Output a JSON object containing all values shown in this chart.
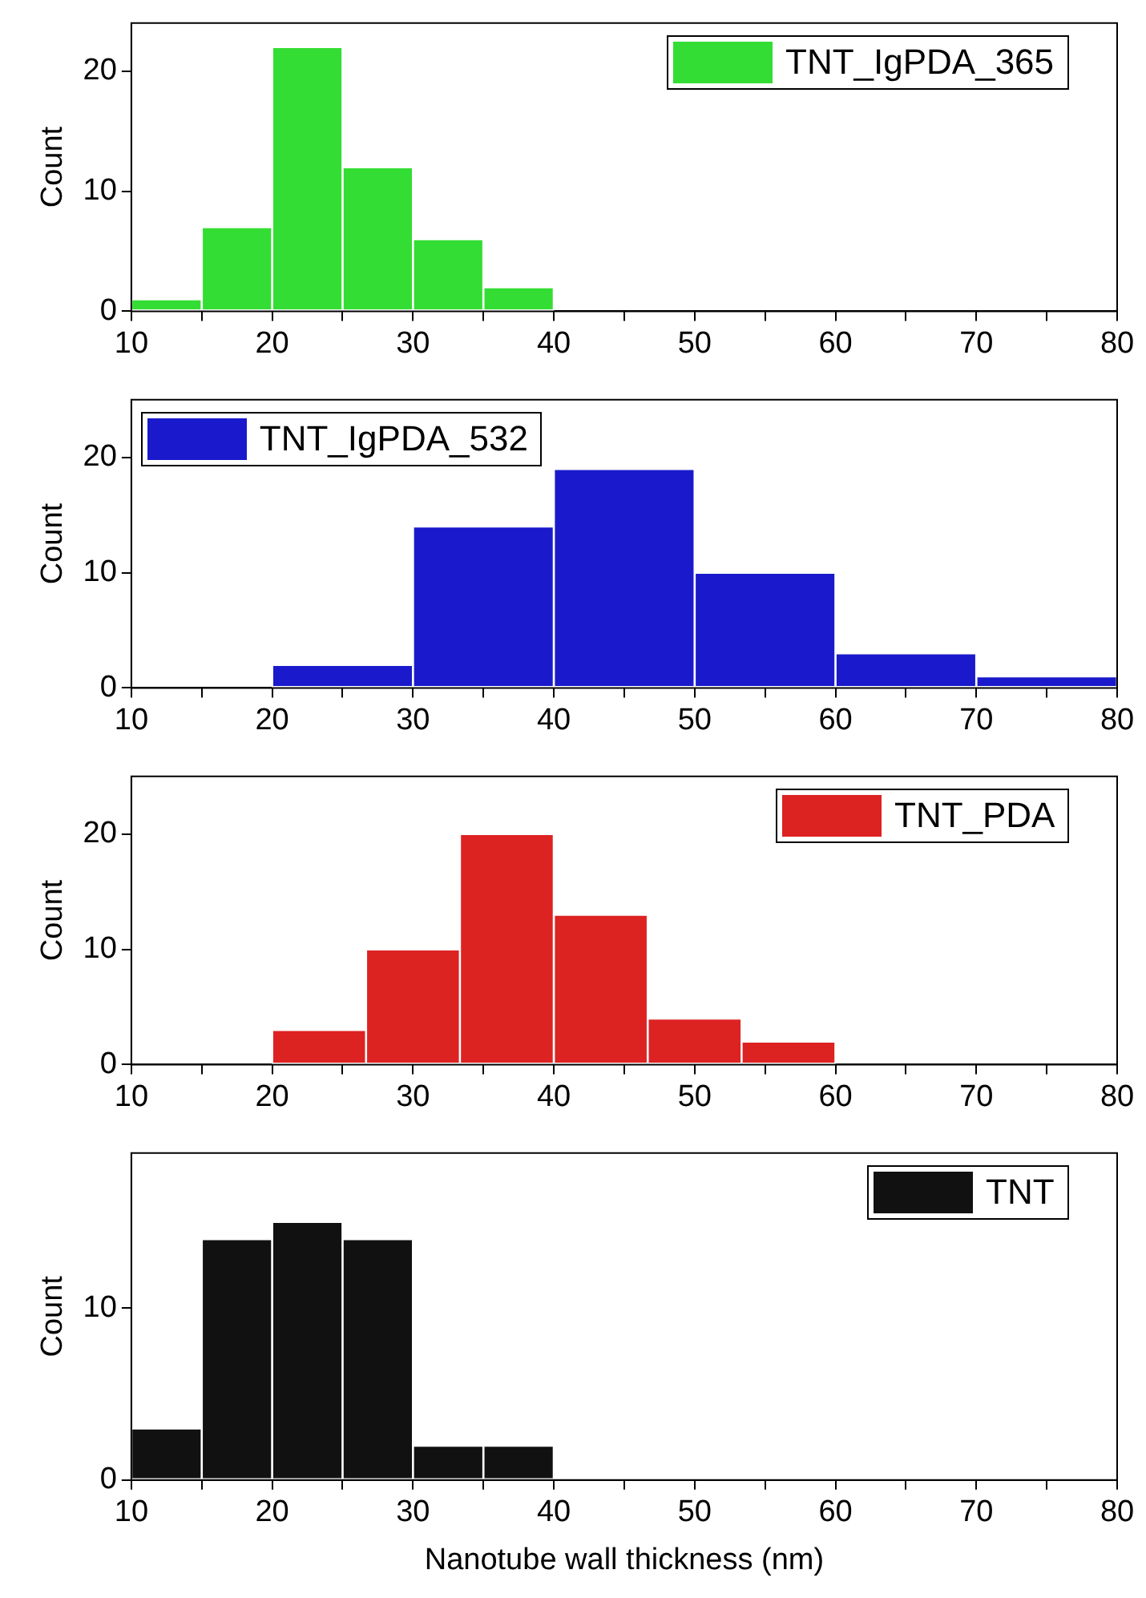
{
  "chart_data": [
    {
      "type": "histogram",
      "ylabel": "Count",
      "bins": [
        10,
        15,
        20,
        25,
        30,
        35,
        40
      ],
      "series": [
        {
          "name": "TNT_IgPDA_365",
          "color": "#33dd33",
          "values": [
            1,
            7,
            22,
            12,
            6,
            2
          ]
        }
      ],
      "legend": "top right",
      "xlim": [
        10,
        80
      ],
      "xticks": [
        10,
        {
          "value": 15,
          "label": null
        },
        20,
        {
          "value": 25,
          "label": null
        },
        30,
        {
          "value": 35,
          "label": null
        },
        40,
        {
          "value": 45,
          "label": null
        },
        50,
        {
          "value": 55,
          "label": null
        },
        60,
        {
          "value": 65,
          "label": null
        },
        70,
        {
          "value": 75,
          "label": null
        },
        80
      ],
      "ylim": [
        0,
        24
      ],
      "yticks": [
        0,
        10,
        20
      ]
    },
    {
      "type": "histogram",
      "ylabel": "Count",
      "bins": [
        20,
        30,
        40,
        50,
        60,
        70,
        80
      ],
      "series": [
        {
          "name": "TNT_IgPDA_532",
          "color": "#1a1acc",
          "values": [
            2,
            14,
            19,
            10,
            3,
            1
          ]
        }
      ],
      "legend": "top left",
      "xlim": [
        10,
        80
      ],
      "xticks": [
        10,
        {
          "value": 15,
          "label": null
        },
        20,
        {
          "value": 25,
          "label": null
        },
        30,
        {
          "value": 35,
          "label": null
        },
        40,
        {
          "value": 45,
          "label": null
        },
        50,
        {
          "value": 55,
          "label": null
        },
        60,
        {
          "value": 65,
          "label": null
        },
        70,
        {
          "value": 75,
          "label": null
        },
        80
      ],
      "ylim": [
        0,
        25
      ],
      "yticks": [
        0,
        10,
        20
      ]
    },
    {
      "type": "histogram",
      "ylabel": "Count",
      "bins": [
        20,
        26.67,
        33.33,
        40,
        46.67,
        53.33,
        60
      ],
      "series": [
        {
          "name": "TNT_PDA",
          "color": "#dd2222",
          "values": [
            3,
            10,
            20,
            13,
            4,
            2
          ]
        }
      ],
      "legend": "top right",
      "xlim": [
        10,
        80
      ],
      "xticks": [
        10,
        {
          "value": 15,
          "label": null
        },
        20,
        {
          "value": 25,
          "label": null
        },
        30,
        {
          "value": 35,
          "label": null
        },
        40,
        {
          "value": 45,
          "label": null
        },
        50,
        {
          "value": 55,
          "label": null
        },
        60,
        {
          "value": 65,
          "label": null
        },
        70,
        {
          "value": 75,
          "label": null
        },
        80
      ],
      "ylim": [
        0,
        25
      ],
      "yticks": [
        0,
        10,
        20
      ]
    },
    {
      "type": "histogram",
      "ylabel": "Count",
      "xlabel": "Nanotube wall thickness (nm)",
      "bins": [
        10,
        15,
        20,
        25,
        30,
        35,
        40
      ],
      "series": [
        {
          "name": "TNT",
          "color": "#111111",
          "values": [
            3,
            14,
            15,
            14,
            2,
            2
          ]
        }
      ],
      "legend": "top right",
      "xlim": [
        10,
        80
      ],
      "xticks": [
        10,
        {
          "value": 15,
          "label": null
        },
        20,
        {
          "value": 25,
          "label": null
        },
        30,
        {
          "value": 35,
          "label": null
        },
        40,
        {
          "value": 45,
          "label": null
        },
        50,
        {
          "value": 55,
          "label": null
        },
        60,
        {
          "value": 65,
          "label": null
        },
        70,
        {
          "value": 75,
          "label": null
        },
        80
      ],
      "ylim": [
        0,
        19
      ],
      "yticks": [
        0,
        10
      ]
    }
  ]
}
